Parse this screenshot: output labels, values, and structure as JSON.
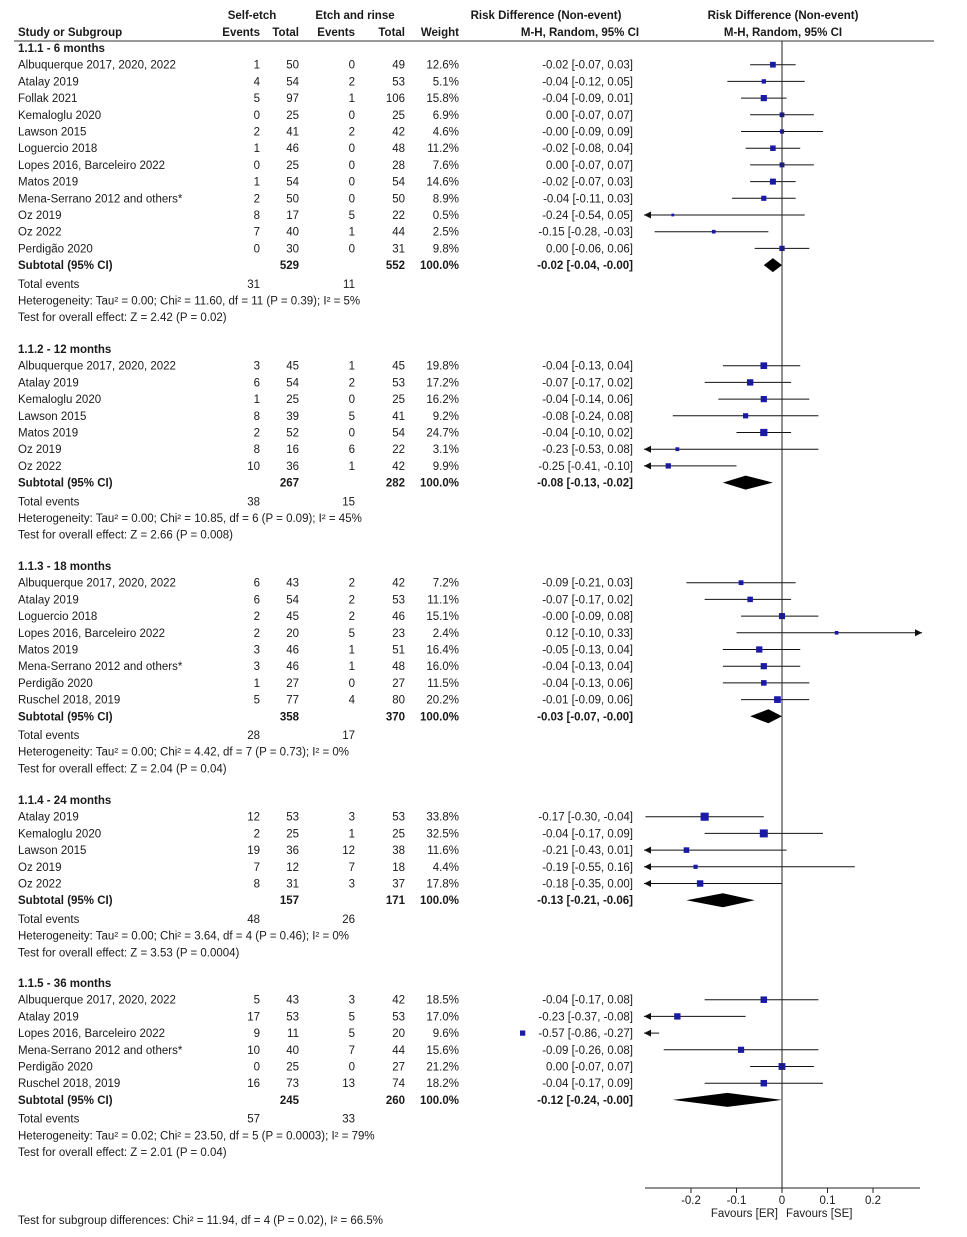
{
  "header": {
    "col_study": "Study or Subgroup",
    "group1": "Self-etch",
    "group2": "Etch and rinse",
    "events": "Events",
    "total": "Total",
    "weight": "Weight",
    "rd_title": "Risk Difference (Non-event)",
    "rd_method": "M-H, Random, 95% CI",
    "plot_title": "Risk Difference (Non-event)",
    "plot_method": "M-H, Random, 95% CI"
  },
  "axis": {
    "ticks": [
      "-0.2",
      "-0.1",
      "0",
      "0.1",
      "0.2"
    ],
    "favours_left": "Favours [ER]",
    "favours_right": "Favours [SE]"
  },
  "subgroup_test": "Test for subgroup differences: Chi² = 11.94, df = 4 (P = 0.02), I² = 66.5%",
  "chart_data": {
    "type": "forest",
    "xlim": [
      -0.3,
      0.3
    ],
    "xticks": [
      -0.2,
      -0.1,
      0,
      0.1,
      0.2
    ],
    "subgroups": [
      {
        "title": "1.1.1 - 6 months",
        "studies": [
          {
            "name": "Albuquerque 2017, 2020, 2022",
            "e1": "1",
            "n1": "50",
            "e2": "0",
            "n2": "49",
            "weight": "12.6%",
            "ci_text": "-0.02 [-0.07, 0.03]",
            "rd": -0.02,
            "lo": -0.07,
            "hi": 0.03
          },
          {
            "name": "Atalay 2019",
            "e1": "4",
            "n1": "54",
            "e2": "2",
            "n2": "53",
            "weight": "5.1%",
            "ci_text": "-0.04 [-0.12, 0.05]",
            "rd": -0.04,
            "lo": -0.12,
            "hi": 0.05
          },
          {
            "name": "Follak 2021",
            "e1": "5",
            "n1": "97",
            "e2": "1",
            "n2": "106",
            "weight": "15.8%",
            "ci_text": "-0.04 [-0.09, 0.01]",
            "rd": -0.04,
            "lo": -0.09,
            "hi": 0.01
          },
          {
            "name": "Kemaloglu 2020",
            "e1": "0",
            "n1": "25",
            "e2": "0",
            "n2": "25",
            "weight": "6.9%",
            "ci_text": "0.00 [-0.07, 0.07]",
            "rd": 0.0,
            "lo": -0.07,
            "hi": 0.07
          },
          {
            "name": "Lawson 2015",
            "e1": "2",
            "n1": "41",
            "e2": "2",
            "n2": "42",
            "weight": "4.6%",
            "ci_text": "-0.00 [-0.09, 0.09]",
            "rd": 0.0,
            "lo": -0.09,
            "hi": 0.09
          },
          {
            "name": "Loguercio 2018",
            "e1": "1",
            "n1": "46",
            "e2": "0",
            "n2": "48",
            "weight": "11.2%",
            "ci_text": "-0.02 [-0.08, 0.04]",
            "rd": -0.02,
            "lo": -0.08,
            "hi": 0.04
          },
          {
            "name": "Lopes 2016, Barceleiro 2022",
            "e1": "0",
            "n1": "25",
            "e2": "0",
            "n2": "28",
            "weight": "7.6%",
            "ci_text": "0.00 [-0.07, 0.07]",
            "rd": 0.0,
            "lo": -0.07,
            "hi": 0.07
          },
          {
            "name": "Matos 2019",
            "e1": "1",
            "n1": "54",
            "e2": "0",
            "n2": "54",
            "weight": "14.6%",
            "ci_text": "-0.02 [-0.07, 0.03]",
            "rd": -0.02,
            "lo": -0.07,
            "hi": 0.03
          },
          {
            "name": "Mena-Serrano 2012 and others*",
            "e1": "2",
            "n1": "50",
            "e2": "0",
            "n2": "50",
            "weight": "8.9%",
            "ci_text": "-0.04 [-0.11, 0.03]",
            "rd": -0.04,
            "lo": -0.11,
            "hi": 0.03
          },
          {
            "name": "Oz 2019",
            "e1": "8",
            "n1": "17",
            "e2": "5",
            "n2": "22",
            "weight": "0.5%",
            "ci_text": "-0.24 [-0.54, 0.05]",
            "rd": -0.24,
            "lo": -0.54,
            "hi": 0.05
          },
          {
            "name": "Oz 2022",
            "e1": "7",
            "n1": "40",
            "e2": "1",
            "n2": "44",
            "weight": "2.5%",
            "ci_text": "-0.15 [-0.28, -0.03]",
            "rd": -0.15,
            "lo": -0.28,
            "hi": -0.03
          },
          {
            "name": "Perdigão 2020",
            "e1": "0",
            "n1": "30",
            "e2": "0",
            "n2": "31",
            "weight": "9.8%",
            "ci_text": "0.00 [-0.06, 0.06]",
            "rd": 0.0,
            "lo": -0.06,
            "hi": 0.06
          }
        ],
        "subtotal": {
          "label": "Subtotal (95% CI)",
          "n1": "529",
          "n2": "552",
          "weight": "100.0%",
          "ci_text": "-0.02 [-0.04, -0.00]",
          "rd": -0.02,
          "lo": -0.04,
          "hi": -0.0
        },
        "total_events": {
          "label": "Total events",
          "e1": "31",
          "e2": "11"
        },
        "heterogeneity": "Heterogeneity: Tau² = 0.00; Chi² = 11.60, df = 11 (P = 0.39); I² = 5%",
        "overall": "Test for overall effect: Z = 2.42 (P = 0.02)"
      },
      {
        "title": "1.1.2 - 12 months",
        "studies": [
          {
            "name": "Albuquerque 2017, 2020, 2022",
            "e1": "3",
            "n1": "45",
            "e2": "1",
            "n2": "45",
            "weight": "19.8%",
            "ci_text": "-0.04 [-0.13, 0.04]",
            "rd": -0.04,
            "lo": -0.13,
            "hi": 0.04
          },
          {
            "name": "Atalay 2019",
            "e1": "6",
            "n1": "54",
            "e2": "2",
            "n2": "53",
            "weight": "17.2%",
            "ci_text": "-0.07 [-0.17, 0.02]",
            "rd": -0.07,
            "lo": -0.17,
            "hi": 0.02
          },
          {
            "name": "Kemaloglu 2020",
            "e1": "1",
            "n1": "25",
            "e2": "0",
            "n2": "25",
            "weight": "16.2%",
            "ci_text": "-0.04 [-0.14, 0.06]",
            "rd": -0.04,
            "lo": -0.14,
            "hi": 0.06
          },
          {
            "name": "Lawson 2015",
            "e1": "8",
            "n1": "39",
            "e2": "5",
            "n2": "41",
            "weight": "9.2%",
            "ci_text": "-0.08 [-0.24, 0.08]",
            "rd": -0.08,
            "lo": -0.24,
            "hi": 0.08
          },
          {
            "name": "Matos 2019",
            "e1": "2",
            "n1": "52",
            "e2": "0",
            "n2": "54",
            "weight": "24.7%",
            "ci_text": "-0.04 [-0.10, 0.02]",
            "rd": -0.04,
            "lo": -0.1,
            "hi": 0.02
          },
          {
            "name": "Oz 2019",
            "e1": "8",
            "n1": "16",
            "e2": "6",
            "n2": "22",
            "weight": "3.1%",
            "ci_text": "-0.23 [-0.53, 0.08]",
            "rd": -0.23,
            "lo": -0.53,
            "hi": 0.08
          },
          {
            "name": "Oz 2022",
            "e1": "10",
            "n1": "36",
            "e2": "1",
            "n2": "42",
            "weight": "9.9%",
            "ci_text": "-0.25 [-0.41, -0.10]",
            "rd": -0.25,
            "lo": -0.41,
            "hi": -0.1
          }
        ],
        "subtotal": {
          "label": "Subtotal (95% CI)",
          "n1": "267",
          "n2": "282",
          "weight": "100.0%",
          "ci_text": "-0.08 [-0.13, -0.02]",
          "rd": -0.08,
          "lo": -0.13,
          "hi": -0.02
        },
        "total_events": {
          "label": "Total events",
          "e1": "38",
          "e2": "15"
        },
        "heterogeneity": "Heterogeneity: Tau² = 0.00; Chi² = 10.85, df = 6 (P = 0.09); I² = 45%",
        "overall": "Test for overall effect: Z = 2.66 (P = 0.008)"
      },
      {
        "title": "1.1.3 - 18 months",
        "studies": [
          {
            "name": "Albuquerque 2017, 2020, 2022",
            "e1": "6",
            "n1": "43",
            "e2": "2",
            "n2": "42",
            "weight": "7.2%",
            "ci_text": "-0.09 [-0.21, 0.03]",
            "rd": -0.09,
            "lo": -0.21,
            "hi": 0.03
          },
          {
            "name": "Atalay 2019",
            "e1": "6",
            "n1": "54",
            "e2": "2",
            "n2": "53",
            "weight": "11.1%",
            "ci_text": "-0.07 [-0.17, 0.02]",
            "rd": -0.07,
            "lo": -0.17,
            "hi": 0.02
          },
          {
            "name": "Loguercio 2018",
            "e1": "2",
            "n1": "45",
            "e2": "2",
            "n2": "46",
            "weight": "15.1%",
            "ci_text": "-0.00 [-0.09, 0.08]",
            "rd": 0.0,
            "lo": -0.09,
            "hi": 0.08
          },
          {
            "name": "Lopes 2016, Barceleiro 2022",
            "e1": "2",
            "n1": "20",
            "e2": "5",
            "n2": "23",
            "weight": "2.4%",
            "ci_text": "0.12 [-0.10, 0.33]",
            "rd": 0.12,
            "lo": -0.1,
            "hi": 0.33
          },
          {
            "name": "Matos 2019",
            "e1": "3",
            "n1": "46",
            "e2": "1",
            "n2": "51",
            "weight": "16.4%",
            "ci_text": "-0.05 [-0.13, 0.04]",
            "rd": -0.05,
            "lo": -0.13,
            "hi": 0.04
          },
          {
            "name": "Mena-Serrano 2012 and others*",
            "e1": "3",
            "n1": "46",
            "e2": "1",
            "n2": "48",
            "weight": "16.0%",
            "ci_text": "-0.04 [-0.13, 0.04]",
            "rd": -0.04,
            "lo": -0.13,
            "hi": 0.04
          },
          {
            "name": "Perdigão 2020",
            "e1": "1",
            "n1": "27",
            "e2": "0",
            "n2": "27",
            "weight": "11.5%",
            "ci_text": "-0.04 [-0.13, 0.06]",
            "rd": -0.04,
            "lo": -0.13,
            "hi": 0.06
          },
          {
            "name": "Ruschel 2018, 2019",
            "e1": "5",
            "n1": "77",
            "e2": "4",
            "n2": "80",
            "weight": "20.2%",
            "ci_text": "-0.01 [-0.09, 0.06]",
            "rd": -0.01,
            "lo": -0.09,
            "hi": 0.06
          }
        ],
        "subtotal": {
          "label": "Subtotal (95% CI)",
          "n1": "358",
          "n2": "370",
          "weight": "100.0%",
          "ci_text": "-0.03 [-0.07, -0.00]",
          "rd": -0.03,
          "lo": -0.07,
          "hi": -0.0
        },
        "total_events": {
          "label": "Total events",
          "e1": "28",
          "e2": "17"
        },
        "heterogeneity": "Heterogeneity: Tau² = 0.00; Chi² = 4.42, df = 7 (P = 0.73); I² = 0%",
        "overall": "Test for overall effect: Z = 2.04 (P = 0.04)"
      },
      {
        "title": "1.1.4 - 24 months",
        "studies": [
          {
            "name": "Atalay 2019",
            "e1": "12",
            "n1": "53",
            "e2": "3",
            "n2": "53",
            "weight": "33.8%",
            "ci_text": "-0.17 [-0.30, -0.04]",
            "rd": -0.17,
            "lo": -0.3,
            "hi": -0.04
          },
          {
            "name": "Kemaloglu 2020",
            "e1": "2",
            "n1": "25",
            "e2": "1",
            "n2": "25",
            "weight": "32.5%",
            "ci_text": "-0.04 [-0.17, 0.09]",
            "rd": -0.04,
            "lo": -0.17,
            "hi": 0.09
          },
          {
            "name": "Lawson 2015",
            "e1": "19",
            "n1": "36",
            "e2": "12",
            "n2": "38",
            "weight": "11.6%",
            "ci_text": "-0.21 [-0.43, 0.01]",
            "rd": -0.21,
            "lo": -0.43,
            "hi": 0.01
          },
          {
            "name": "Oz 2019",
            "e1": "7",
            "n1": "12",
            "e2": "7",
            "n2": "18",
            "weight": "4.4%",
            "ci_text": "-0.19 [-0.55, 0.16]",
            "rd": -0.19,
            "lo": -0.55,
            "hi": 0.16
          },
          {
            "name": "Oz 2022",
            "e1": "8",
            "n1": "31",
            "e2": "3",
            "n2": "37",
            "weight": "17.8%",
            "ci_text": "-0.18 [-0.35, 0.00]",
            "rd": -0.18,
            "lo": -0.35,
            "hi": 0.0
          }
        ],
        "subtotal": {
          "label": "Subtotal (95% CI)",
          "n1": "157",
          "n2": "171",
          "weight": "100.0%",
          "ci_text": "-0.13 [-0.21, -0.06]",
          "rd": -0.13,
          "lo": -0.21,
          "hi": -0.06
        },
        "total_events": {
          "label": "Total events",
          "e1": "48",
          "e2": "26"
        },
        "heterogeneity": "Heterogeneity: Tau² = 0.00; Chi² = 3.64, df = 4 (P = 0.46); I² = 0%",
        "overall": "Test for overall effect: Z = 3.53 (P = 0.0004)"
      },
      {
        "title": "1.1.5 - 36 months",
        "studies": [
          {
            "name": "Albuquerque 2017, 2020, 2022",
            "e1": "5",
            "n1": "43",
            "e2": "3",
            "n2": "42",
            "weight": "18.5%",
            "ci_text": "-0.04 [-0.17, 0.08]",
            "rd": -0.04,
            "lo": -0.17,
            "hi": 0.08
          },
          {
            "name": "Atalay 2019",
            "e1": "17",
            "n1": "53",
            "e2": "5",
            "n2": "53",
            "weight": "17.0%",
            "ci_text": "-0.23 [-0.37, -0.08]",
            "rd": -0.23,
            "lo": -0.37,
            "hi": -0.08
          },
          {
            "name": "Lopes 2016, Barceleiro 2022",
            "e1": "9",
            "n1": "11",
            "e2": "5",
            "n2": "20",
            "weight": "9.6%",
            "ci_text": "-0.57 [-0.86, -0.27]",
            "rd": -0.57,
            "lo": -0.86,
            "hi": -0.27
          },
          {
            "name": "Mena-Serrano 2012 and others*",
            "e1": "10",
            "n1": "40",
            "e2": "7",
            "n2": "44",
            "weight": "15.6%",
            "ci_text": "-0.09 [-0.26, 0.08]",
            "rd": -0.09,
            "lo": -0.26,
            "hi": 0.08
          },
          {
            "name": "Perdigão 2020",
            "e1": "0",
            "n1": "25",
            "e2": "0",
            "n2": "27",
            "weight": "21.2%",
            "ci_text": "0.00 [-0.07, 0.07]",
            "rd": 0.0,
            "lo": -0.07,
            "hi": 0.07
          },
          {
            "name": "Ruschel 2018, 2019",
            "e1": "16",
            "n1": "73",
            "e2": "13",
            "n2": "74",
            "weight": "18.2%",
            "ci_text": "-0.04 [-0.17, 0.09]",
            "rd": -0.04,
            "lo": -0.17,
            "hi": 0.09
          }
        ],
        "subtotal": {
          "label": "Subtotal (95% CI)",
          "n1": "245",
          "n2": "260",
          "weight": "100.0%",
          "ci_text": "-0.12 [-0.24, -0.00]",
          "rd": -0.12,
          "lo": -0.24,
          "hi": -0.0
        },
        "total_events": {
          "label": "Total events",
          "e1": "57",
          "e2": "33"
        },
        "heterogeneity": "Heterogeneity: Tau² = 0.02; Chi² = 23.50, df = 5 (P = 0.0003); I² = 79%",
        "overall": "Test for overall effect: Z = 2.01 (P = 0.04)"
      }
    ],
    "marker_color": "#1a1aa6",
    "diamond_color": "#000000"
  }
}
